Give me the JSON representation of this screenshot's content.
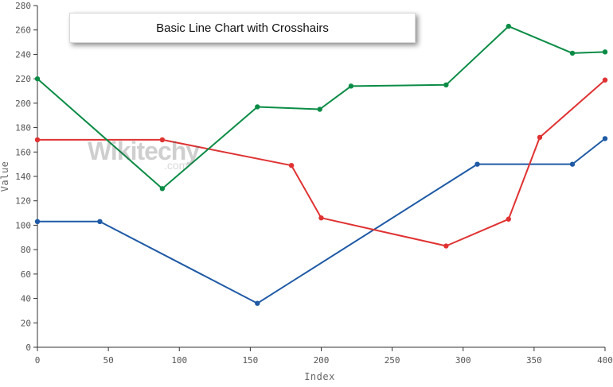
{
  "chart_data": {
    "type": "line",
    "title": "Basic Line Chart with Crosshairs",
    "xlabel": "Index",
    "ylabel": "Value",
    "xlim": [
      0,
      400
    ],
    "ylim": [
      0,
      280
    ],
    "x_ticks": [
      0,
      50,
      100,
      150,
      200,
      250,
      300,
      350,
      400
    ],
    "y_ticks": [
      0,
      20,
      40,
      60,
      80,
      100,
      120,
      140,
      160,
      180,
      200,
      220,
      240,
      260,
      280
    ],
    "grid": false,
    "series": [
      {
        "color": "#1f5aa6",
        "points": [
          [
            0,
            103
          ],
          [
            44,
            103
          ],
          [
            155,
            36
          ],
          [
            310,
            150
          ],
          [
            377,
            150
          ],
          [
            400,
            171
          ]
        ]
      },
      {
        "color": "#e03232",
        "points": [
          [
            0,
            170
          ],
          [
            88,
            170
          ],
          [
            179,
            149
          ],
          [
            200,
            106
          ],
          [
            288,
            83
          ],
          [
            332,
            105
          ],
          [
            354,
            172
          ],
          [
            400,
            219
          ]
        ]
      },
      {
        "color": "#0b8c46",
        "points": [
          [
            0,
            220
          ],
          [
            88,
            130
          ],
          [
            155,
            197
          ],
          [
            199,
            195
          ],
          [
            221,
            214
          ],
          [
            288,
            215
          ],
          [
            332,
            263
          ],
          [
            377,
            241
          ],
          [
            400,
            242
          ]
        ]
      }
    ]
  },
  "watermark": {
    "main": "Wikitechy",
    "sub": ".com"
  }
}
